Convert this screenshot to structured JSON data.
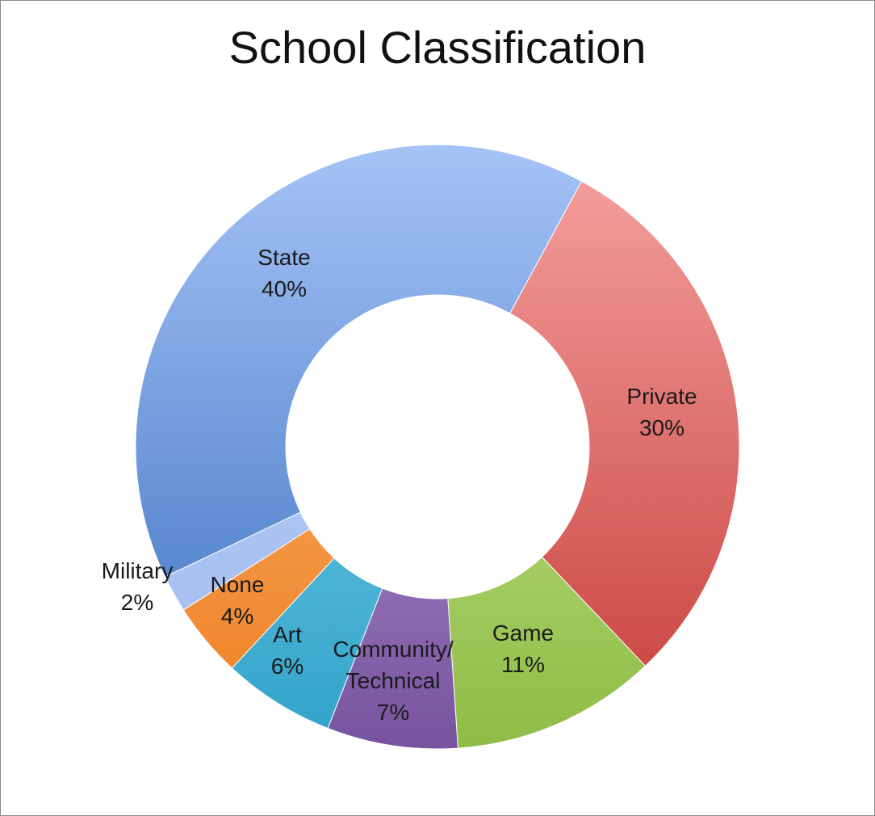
{
  "chart_data": {
    "type": "pie",
    "title": "School Classification",
    "donut": true,
    "legend": "none",
    "slices": [
      {
        "name": "Private",
        "label_lines": [
          "Private"
        ],
        "value": 30,
        "value_label": "30%",
        "color_light": "#f5a3a1",
        "color_dark": "#c63c38"
      },
      {
        "name": "Game",
        "label_lines": [
          "Game"
        ],
        "value": 11,
        "value_label": "11%",
        "color_light": "#d3ef9f",
        "color_dark": "#8fbc46"
      },
      {
        "name": "Community/ Technical",
        "label_lines": [
          "Community/",
          "Technical"
        ],
        "value": 7,
        "value_label": "7%",
        "color_light": "#c9b2e2",
        "color_dark": "#77539f"
      },
      {
        "name": "Art",
        "label_lines": [
          "Art"
        ],
        "value": 6,
        "value_label": "6%",
        "color_light": "#93dcf6",
        "color_dark": "#2fa2c8"
      },
      {
        "name": "None",
        "label_lines": [
          "None"
        ],
        "value": 4,
        "value_label": "4%",
        "color_light": "#fbbf86",
        "color_dark": "#ef7e1f"
      },
      {
        "name": "Military",
        "label_lines": [
          "Military"
        ],
        "value": 2,
        "value_label": "2%",
        "color_light": "#bcd0f7",
        "color_dark": "#a2bcf0"
      },
      {
        "name": "State",
        "label_lines": [
          "State"
        ],
        "value": 40,
        "value_label": "40%",
        "color_light": "#a5c3f6",
        "color_dark": "#3a70bf"
      }
    ]
  }
}
